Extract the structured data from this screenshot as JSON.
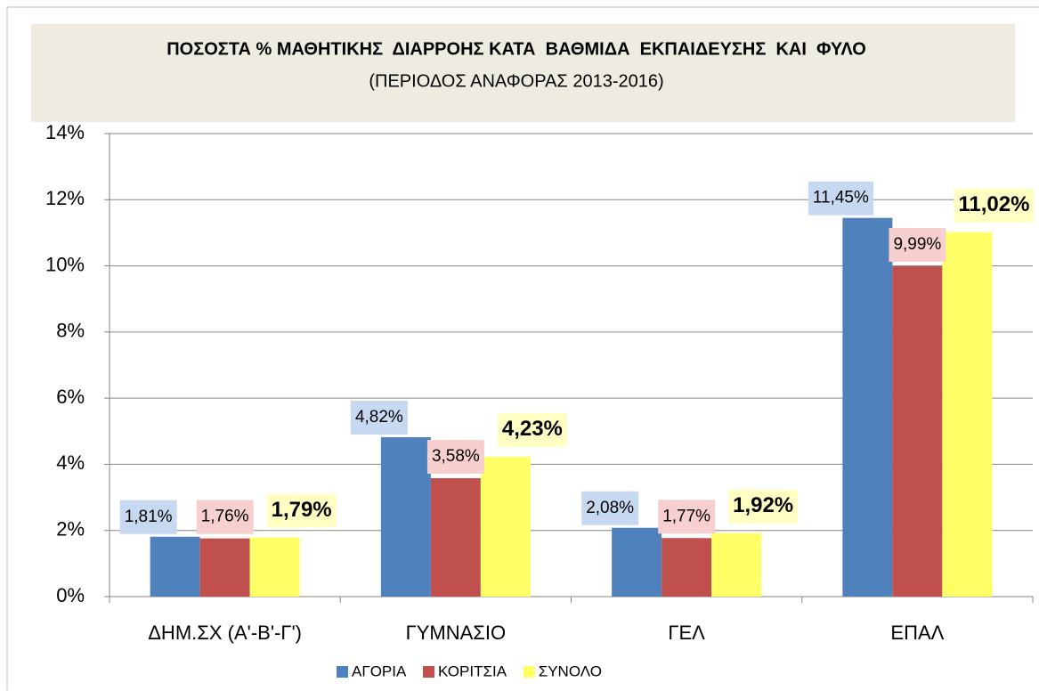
{
  "chart_data": {
    "type": "bar",
    "title": "ΠΟΣΟΣΤΑ % ΜΑΘΗΤΙΚΗΣ  ΔΙΑΡΡΟΗΣ ΚΑΤΑ  ΒΑΘΜΙΔΑ  ΕΚΠΑΙΔΕΥΣΗΣ  ΚΑΙ  ΦΥΛΟ",
    "subtitle": "(ΠΕΡΙΟΔΟΣ ΑΝΑΦΟΡΑΣ 2013-2016)",
    "categories": [
      "ΔΗΜ.ΣΧ (Α'-Β'-Γ')",
      "ΓΥΜΝΑΣΙΟ",
      "ΓΕΛ",
      "ΕΠΑΛ"
    ],
    "series": [
      {
        "name": "ΑΓΟΡΙΑ",
        "color": "#4f81bd",
        "label_color": "#c6d9f1",
        "values": [
          1.81,
          4.82,
          2.08,
          11.45
        ],
        "value_labels": [
          "1,81%",
          "4,82%",
          "2,08%",
          "11,45%"
        ]
      },
      {
        "name": "ΚΟΡΙΤΣΙΑ",
        "color": "#c0504d",
        "label_color": "#f8cfcf",
        "values": [
          1.76,
          3.58,
          1.77,
          9.99
        ],
        "value_labels": [
          "1,76%",
          "3,58%",
          "1,77%",
          "9,99%"
        ]
      },
      {
        "name": "ΣΥΝΟΛΟ",
        "color": "#ffff66",
        "label_color": "#ffffc4",
        "values": [
          1.79,
          4.23,
          1.92,
          11.02
        ],
        "value_labels": [
          "1,79%",
          "4,23%",
          "1,92%",
          "11,02%"
        ]
      }
    ],
    "ylim": [
      0,
      14
    ],
    "yticks": [
      {
        "value": 0,
        "label": "0%"
      },
      {
        "value": 2,
        "label": "2%"
      },
      {
        "value": 4,
        "label": "4%"
      },
      {
        "value": 6,
        "label": "6%"
      },
      {
        "value": 8,
        "label": "8%"
      },
      {
        "value": 10,
        "label": "10%"
      },
      {
        "value": 12,
        "label": "12%"
      },
      {
        "value": 14,
        "label": "14%"
      }
    ],
    "grid": true,
    "legend": "bottom"
  }
}
